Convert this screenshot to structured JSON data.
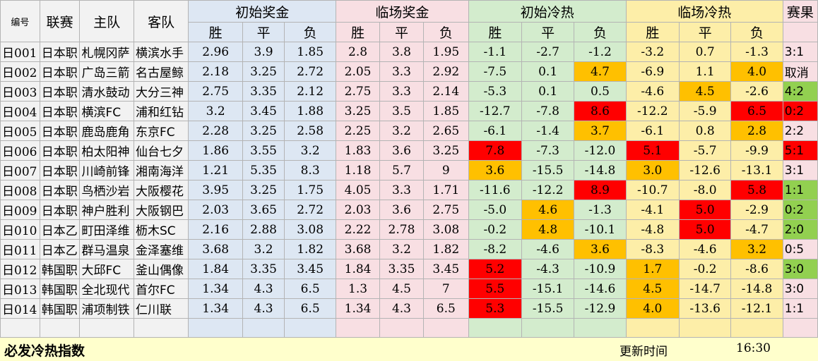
{
  "headers": {
    "id": "编号",
    "league": "联赛",
    "home": "主队",
    "away": "客队",
    "initial_odds": "初始奖金",
    "live_odds": "临场奖金",
    "initial_heat": "初始冷热",
    "live_heat": "临场冷热",
    "result": "赛果",
    "win": "胜",
    "draw": "平",
    "lose": "负"
  },
  "rows": [
    {
      "id": "日001",
      "league": "日本职",
      "home": "札幌冈萨",
      "away": "横滨水手",
      "io": [
        "2.96",
        "3.9",
        "1.85"
      ],
      "lo": [
        "2.8",
        "3.8",
        "1.95"
      ],
      "ih": [
        "-1.1",
        "-2.7",
        "-1.2"
      ],
      "lh": [
        "-3.2",
        "0.7",
        "-1.3"
      ],
      "result": "3:1",
      "ihc": [
        "",
        "",
        ""
      ],
      "lhc": [
        "",
        "",
        ""
      ],
      "rc": ""
    },
    {
      "id": "日002",
      "league": "日本职",
      "home": "广岛三箭",
      "away": "名古屋鲸",
      "io": [
        "2.18",
        "3.25",
        "2.72"
      ],
      "lo": [
        "2.05",
        "3.3",
        "2.92"
      ],
      "ih": [
        "-7.5",
        "0.1",
        "4.7"
      ],
      "lh": [
        "-6.9",
        "1.1",
        "4.0"
      ],
      "result": "取消",
      "ihc": [
        "",
        "",
        "orange"
      ],
      "lhc": [
        "",
        "",
        "orange"
      ],
      "rc": ""
    },
    {
      "id": "日003",
      "league": "日本职",
      "home": "清水鼓动",
      "away": "大分三神",
      "io": [
        "2.75",
        "3.35",
        "2.12"
      ],
      "lo": [
        "2.75",
        "3.3",
        "2.14"
      ],
      "ih": [
        "-5.3",
        "0.1",
        "0.5"
      ],
      "lh": [
        "-4.6",
        "4.5",
        "-2.6"
      ],
      "result": "4:2",
      "ihc": [
        "",
        "",
        ""
      ],
      "lhc": [
        "",
        "orange",
        ""
      ],
      "rc": "green"
    },
    {
      "id": "日004",
      "league": "日本职",
      "home": "横滨FC",
      "away": "浦和红钻",
      "io": [
        "3.2",
        "3.45",
        "1.88"
      ],
      "lo": [
        "3.25",
        "3.5",
        "1.85"
      ],
      "ih": [
        "-12.7",
        "-7.8",
        "8.6"
      ],
      "lh": [
        "-12.2",
        "-5.9",
        "6.5"
      ],
      "result": "0:2",
      "ihc": [
        "",
        "",
        "red"
      ],
      "lhc": [
        "",
        "",
        "red"
      ],
      "rc": "red"
    },
    {
      "id": "日005",
      "league": "日本职",
      "home": "鹿岛鹿角",
      "away": "东京FC",
      "io": [
        "2.28",
        "3.25",
        "2.58"
      ],
      "lo": [
        "2.25",
        "3.2",
        "2.65"
      ],
      "ih": [
        "-6.1",
        "-1.4",
        "3.7"
      ],
      "lh": [
        "-6.1",
        "0.8",
        "2.8"
      ],
      "result": "2:2",
      "ihc": [
        "",
        "",
        "orange"
      ],
      "lhc": [
        "",
        "",
        "orange"
      ],
      "rc": ""
    },
    {
      "id": "日006",
      "league": "日本职",
      "home": "柏太阳神",
      "away": "仙台七夕",
      "io": [
        "1.86",
        "3.55",
        "3.2"
      ],
      "lo": [
        "1.83",
        "3.6",
        "3.25"
      ],
      "ih": [
        "7.8",
        "-7.3",
        "-12.0"
      ],
      "lh": [
        "5.1",
        "-5.7",
        "-9.9"
      ],
      "result": "5:1",
      "ihc": [
        "red",
        "",
        ""
      ],
      "lhc": [
        "red",
        "",
        ""
      ],
      "rc": "red"
    },
    {
      "id": "日007",
      "league": "日本职",
      "home": "川崎前锋",
      "away": "湘南海洋",
      "io": [
        "1.21",
        "5.35",
        "8.3"
      ],
      "lo": [
        "1.18",
        "5.7",
        "9"
      ],
      "ih": [
        "3.6",
        "-15.5",
        "-14.8"
      ],
      "lh": [
        "3.0",
        "-12.6",
        "-13.1"
      ],
      "result": "3:1",
      "ihc": [
        "orange",
        "",
        ""
      ],
      "lhc": [
        "orange",
        "",
        ""
      ],
      "rc": ""
    },
    {
      "id": "日008",
      "league": "日本职",
      "home": "鸟栖沙岩",
      "away": "大阪樱花",
      "io": [
        "3.95",
        "3.25",
        "1.75"
      ],
      "lo": [
        "4.05",
        "3.3",
        "1.71"
      ],
      "ih": [
        "-11.6",
        "-12.2",
        "8.9"
      ],
      "lh": [
        "-10.7",
        "-8.0",
        "5.8"
      ],
      "result": "1:1",
      "ihc": [
        "",
        "",
        "red"
      ],
      "lhc": [
        "",
        "",
        "red"
      ],
      "rc": "green"
    },
    {
      "id": "日009",
      "league": "日本职",
      "home": "神户胜利",
      "away": "大阪钢巴",
      "io": [
        "2.03",
        "3.65",
        "2.72"
      ],
      "lo": [
        "2.03",
        "3.6",
        "2.75"
      ],
      "ih": [
        "-5.0",
        "4.6",
        "-1.3"
      ],
      "lh": [
        "-4.1",
        "5.0",
        "-2.9"
      ],
      "result": "0:2",
      "ihc": [
        "",
        "orange",
        ""
      ],
      "lhc": [
        "",
        "red",
        ""
      ],
      "rc": "green"
    },
    {
      "id": "日010",
      "league": "日本乙",
      "home": "町田泽维",
      "away": "枥木SC",
      "io": [
        "2.16",
        "2.88",
        "3.08"
      ],
      "lo": [
        "2.22",
        "2.78",
        "3.08"
      ],
      "ih": [
        "-0.2",
        "4.8",
        "-10.1"
      ],
      "lh": [
        "-4.8",
        "5.0",
        "-4.7"
      ],
      "result": "2:0",
      "ihc": [
        "",
        "orange",
        ""
      ],
      "lhc": [
        "",
        "red",
        ""
      ],
      "rc": "green"
    },
    {
      "id": "日011",
      "league": "日本乙",
      "home": "群马温泉",
      "away": "金泽塞维",
      "io": [
        "3.68",
        "3.2",
        "1.82"
      ],
      "lo": [
        "3.68",
        "3.2",
        "1.82"
      ],
      "ih": [
        "-8.2",
        "-4.6",
        "3.6"
      ],
      "lh": [
        "-8.3",
        "-4.6",
        "3.2"
      ],
      "result": "0:5",
      "ihc": [
        "",
        "",
        "orange"
      ],
      "lhc": [
        "",
        "",
        "orange"
      ],
      "rc": ""
    },
    {
      "id": "日012",
      "league": "韩国职",
      "home": "大邱FC",
      "away": "釜山偶像",
      "io": [
        "1.84",
        "3.35",
        "3.45"
      ],
      "lo": [
        "1.84",
        "3.35",
        "3.45"
      ],
      "ih": [
        "5.2",
        "-4.3",
        "-10.9"
      ],
      "lh": [
        "1.7",
        "-0.2",
        "-8.6"
      ],
      "result": "3:0",
      "ihc": [
        "red",
        "",
        ""
      ],
      "lhc": [
        "orange",
        "",
        ""
      ],
      "rc": "green"
    },
    {
      "id": "日013",
      "league": "韩国职",
      "home": "全北现代",
      "away": "首尔FC",
      "io": [
        "1.34",
        "4.3",
        "6.5"
      ],
      "lo": [
        "1.3",
        "4.5",
        "7"
      ],
      "ih": [
        "5.5",
        "-15.1",
        "-14.6"
      ],
      "lh": [
        "4.5",
        "-14.7",
        "-14.8"
      ],
      "result": "3:0",
      "ihc": [
        "red",
        "",
        ""
      ],
      "lhc": [
        "orange",
        "",
        ""
      ],
      "rc": ""
    },
    {
      "id": "日014",
      "league": "韩国职",
      "home": "浦项制铁",
      "away": "仁川联",
      "io": [
        "1.34",
        "4.3",
        "6.5"
      ],
      "lo": [
        "1.34",
        "4.3",
        "6.5"
      ],
      "ih": [
        "5.3",
        "-15.5",
        "-12.9"
      ],
      "lh": [
        "4.0",
        "-13.6",
        "-12.1"
      ],
      "result": "1:1",
      "ihc": [
        "red",
        "",
        ""
      ],
      "lhc": [
        "orange",
        "",
        ""
      ],
      "rc": ""
    }
  ],
  "footer": {
    "title": "必发冷热指数",
    "update_label": "更新时间",
    "update_time": "16:30"
  },
  "colors": {
    "orange": "#ffc000",
    "red": "#ff0000",
    "green": "#92d050",
    "blue_bg": "#dde7f3",
    "pink_bg": "#f8dfe3",
    "green_bg": "#d3eccd",
    "yellow_bg": "#fdeea8"
  }
}
